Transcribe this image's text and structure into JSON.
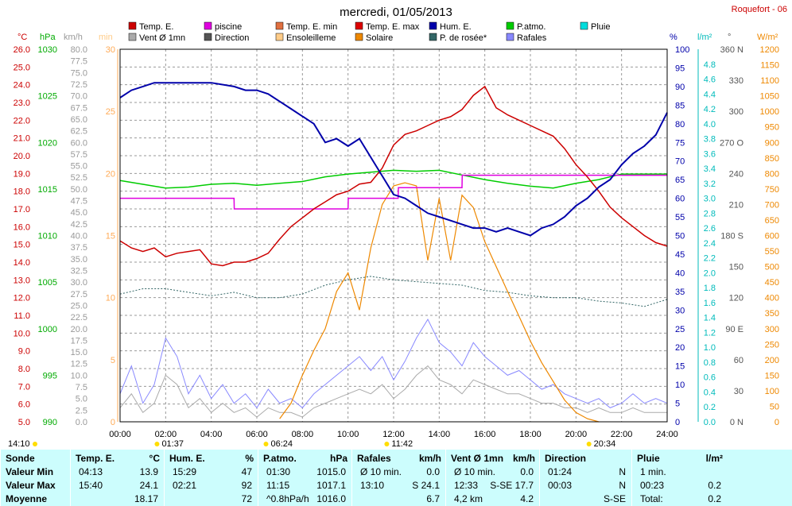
{
  "header": {
    "title": "mercredi, 01/05/2013",
    "station": "Roquefort - 06"
  },
  "legend": [
    {
      "label": "Temp. E.",
      "color": "#cc0000"
    },
    {
      "label": "piscine",
      "color": "#e000e0"
    },
    {
      "label": "Temp. E. min",
      "color": "#e07040"
    },
    {
      "label": "Temp. E. max",
      "color": "#dd0000"
    },
    {
      "label": "Hum. E.",
      "color": "#0000aa"
    },
    {
      "label": "P.atmo.",
      "color": "#00cc00"
    },
    {
      "label": "Pluie",
      "color": "#00dddd"
    },
    {
      "label": "Vent Ø 1mn",
      "color": "#aaaaaa"
    },
    {
      "label": "Direction",
      "color": "#555555"
    },
    {
      "label": "Ensoleilleme",
      "color": "#ffcc88"
    },
    {
      "label": "Solaire",
      "color": "#ee8800"
    },
    {
      "label": "P. de rosée*",
      "color": "#336666"
    },
    {
      "label": "Rafales",
      "color": "#8888ff"
    }
  ],
  "axes": {
    "units": {
      "temp": "°C",
      "press": "hPa",
      "wind": "km/h",
      "sun": "min",
      "hum": "%",
      "rain": "l/m²",
      "dir": "°",
      "solar": "W/m²"
    },
    "temp_ticks": [
      "26.0",
      "25.0",
      "24.0",
      "23.0",
      "22.0",
      "21.0",
      "20.0",
      "19.0",
      "18.0",
      "17.0",
      "16.0",
      "15.0",
      "14.0",
      "13.0",
      "12.0",
      "11.0",
      "10.0",
      "9.0",
      "8.0",
      "7.0",
      "6.0",
      "5.0"
    ],
    "press_ticks": [
      "1030",
      "1025",
      "1020",
      "1015",
      "1010",
      "1005",
      "1000",
      "995",
      "990"
    ],
    "wind_ticks": [
      "80.0",
      "77.5",
      "75.0",
      "72.5",
      "70.0",
      "67.5",
      "65.0",
      "62.5",
      "60.0",
      "57.5",
      "55.0",
      "52.5",
      "50.0",
      "47.5",
      "45.0",
      "42.5",
      "40.0",
      "37.5",
      "35.0",
      "32.5",
      "30.0",
      "27.5",
      "25.0",
      "22.5",
      "20.0",
      "17.5",
      "15.0",
      "12.5",
      "10.0",
      "7.5",
      "5.0",
      "2.5",
      "0.0"
    ],
    "sun_ticks": [
      "30",
      "25",
      "20",
      "15",
      "10",
      "5",
      "0"
    ],
    "hum_ticks": [
      "100",
      "95",
      "90",
      "85",
      "80",
      "75",
      "70",
      "65",
      "60",
      "55",
      "50",
      "45",
      "40",
      "35",
      "30",
      "25",
      "20",
      "15",
      "10",
      "5",
      "0"
    ],
    "rain_ticks": [
      "4.8",
      "4.6",
      "4.4",
      "4.2",
      "4.0",
      "3.8",
      "3.6",
      "3.4",
      "3.2",
      "3.0",
      "2.8",
      "2.6",
      "2.4",
      "2.2",
      "2.0",
      "1.8",
      "1.6",
      "1.4",
      "1.2",
      "1.0",
      "0.8",
      "0.6",
      "0.4",
      "0.2",
      "0.0"
    ],
    "dir_ticks": [
      {
        "v": 360,
        "label": "360 N"
      },
      {
        "v": 330,
        "label": "330"
      },
      {
        "v": 300,
        "label": "300"
      },
      {
        "v": 270,
        "label": "270 O"
      },
      {
        "v": 240,
        "label": "240"
      },
      {
        "v": 210,
        "label": "210"
      },
      {
        "v": 180,
        "label": "180 S"
      },
      {
        "v": 150,
        "label": "150"
      },
      {
        "v": 120,
        "label": "120"
      },
      {
        "v": 90,
        "label": "90 E"
      },
      {
        "v": 60,
        "label": "60"
      },
      {
        "v": 30,
        "label": "30"
      },
      {
        "v": 0,
        "label": "0 N"
      }
    ],
    "solar_ticks": [
      "1200",
      "1150",
      "1100",
      "1050",
      "1000",
      "950",
      "900",
      "850",
      "800",
      "750",
      "700",
      "650",
      "600",
      "550",
      "500",
      "450",
      "400",
      "350",
      "300",
      "250",
      "200",
      "150",
      "100",
      "50",
      "0"
    ],
    "x_ticks": [
      "00:00",
      "02:00",
      "04:00",
      "06:00",
      "08:00",
      "10:00",
      "12:00",
      "14:00",
      "16:00",
      "18:00",
      "20:00",
      "22:00",
      "24:00"
    ]
  },
  "markers": [
    {
      "time": "14:10",
      "hour": 0
    },
    {
      "time": "01:37",
      "hour": 1.62
    },
    {
      "time": "06:24",
      "hour": 6.4
    },
    {
      "time": "11:42",
      "hour": 11.7
    },
    {
      "time": "20:34",
      "hour": 20.57
    }
  ],
  "chart_data": {
    "type": "line",
    "x_unit": "hour",
    "xlim": [
      0,
      24
    ],
    "ylim_temp": [
      5,
      26
    ],
    "ylim_press": [
      990,
      1030
    ],
    "ylim_hum": [
      0,
      100
    ],
    "ylim_solar": [
      0,
      1200
    ],
    "ylim_wind": [
      0,
      80
    ],
    "series": [
      {
        "name": "Temp. E.",
        "axis": "temp",
        "color": "#cc0000",
        "x": [
          0,
          0.5,
          1,
          1.5,
          2,
          2.5,
          3,
          3.5,
          4,
          4.5,
          5,
          5.5,
          6,
          6.5,
          7,
          7.5,
          8,
          8.5,
          9,
          9.5,
          10,
          10.5,
          11,
          11.5,
          12,
          12.5,
          13,
          13.5,
          14,
          14.5,
          15,
          15.5,
          16,
          16.5,
          17,
          17.5,
          18,
          18.5,
          19,
          19.5,
          20,
          20.5,
          21,
          21.5,
          22,
          22.5,
          23,
          23.5,
          24
        ],
        "y": [
          15.2,
          14.8,
          14.6,
          14.8,
          14.3,
          14.5,
          14.6,
          14.7,
          13.9,
          13.8,
          14.0,
          14.0,
          14.2,
          14.5,
          15.3,
          16.0,
          16.5,
          17.0,
          17.4,
          17.8,
          18.0,
          18.4,
          18.5,
          19.3,
          20.6,
          21.2,
          21.4,
          21.7,
          22.0,
          22.2,
          22.6,
          23.4,
          23.9,
          22.7,
          22.3,
          22.0,
          21.7,
          21.4,
          21.1,
          20.4,
          19.5,
          18.8,
          18.0,
          17.1,
          16.5,
          16.0,
          15.5,
          15.1,
          14.9
        ]
      },
      {
        "name": "piscine",
        "axis": "temp",
        "color": "#e000e0",
        "x": [
          0,
          5,
          5.01,
          10,
          10.01,
          12.2,
          12.21,
          15,
          15.01,
          19,
          19.01,
          24
        ],
        "y": [
          17.6,
          17.6,
          17.0,
          17.0,
          17.6,
          17.6,
          18.2,
          18.2,
          18.9,
          18.9,
          18.9,
          18.9
        ]
      },
      {
        "name": "Hum. E.",
        "axis": "hum",
        "color": "#0000aa",
        "x": [
          0,
          0.5,
          1,
          1.5,
          2,
          3,
          4,
          5,
          5.5,
          6,
          6.5,
          7,
          7.5,
          8,
          8.5,
          9,
          9.5,
          10,
          10.5,
          11,
          11.5,
          12,
          12.5,
          13,
          13.5,
          14,
          14.5,
          15,
          15.5,
          16,
          16.5,
          17,
          17.5,
          18,
          18.5,
          19,
          19.5,
          20,
          20.5,
          21,
          21.5,
          22,
          22.5,
          23,
          23.5,
          24
        ],
        "y": [
          87,
          89,
          90,
          91,
          91,
          91,
          91,
          90,
          89,
          89,
          88,
          86,
          84,
          82,
          80,
          75,
          76,
          74,
          76,
          71,
          66,
          61,
          60,
          58,
          56,
          55,
          54,
          53,
          52,
          52,
          51,
          52,
          51,
          50,
          52,
          53,
          55,
          58,
          60,
          63,
          65,
          69,
          72,
          74,
          77,
          83
        ]
      },
      {
        "name": "P.atmo.",
        "axis": "press",
        "color": "#00cc00",
        "x": [
          0,
          1,
          2,
          3,
          4,
          5,
          6,
          7,
          8,
          9,
          10,
          11,
          12,
          13,
          14,
          15,
          16,
          17,
          18,
          19,
          20,
          21,
          22,
          23,
          24
        ],
        "y": [
          1015.9,
          1015.5,
          1015.1,
          1015.2,
          1015.5,
          1015.6,
          1015.4,
          1015.6,
          1015.8,
          1016.3,
          1016.6,
          1016.8,
          1017.0,
          1016.9,
          1017.0,
          1016.5,
          1016.0,
          1015.6,
          1015.3,
          1015.1,
          1015.6,
          1016.0,
          1016.6,
          1016.6,
          1016.6
        ]
      },
      {
        "name": "Solaire",
        "axis": "solar",
        "color": "#ee8800",
        "x": [
          7,
          7.5,
          8,
          8.5,
          9,
          9.5,
          10,
          10.5,
          11,
          11.5,
          12,
          12.5,
          13,
          13.5,
          14,
          14.5,
          15,
          15.5,
          16,
          16.5,
          17,
          17.5,
          18,
          18.5,
          19,
          19.5,
          20,
          20.5,
          21
        ],
        "y": [
          10,
          60,
          150,
          230,
          300,
          420,
          480,
          360,
          560,
          700,
          760,
          770,
          760,
          520,
          720,
          520,
          730,
          690,
          580,
          500,
          420,
          340,
          260,
          190,
          130,
          70,
          30,
          10,
          0
        ]
      },
      {
        "name": "P. de rosée*",
        "axis": "temp",
        "color": "#336666",
        "x": [
          0,
          1,
          2,
          3,
          4,
          5,
          6,
          7,
          8,
          9,
          10,
          11,
          12,
          13,
          14,
          15,
          16,
          17,
          18,
          19,
          20,
          21,
          22,
          23,
          24
        ],
        "y": [
          12.2,
          12.5,
          12.5,
          12.3,
          12.1,
          12.3,
          12.0,
          12.0,
          12.2,
          12.7,
          13.0,
          13.2,
          13.0,
          12.9,
          12.8,
          12.7,
          12.4,
          12.3,
          12.1,
          12.0,
          12.0,
          11.8,
          11.7,
          11.5,
          11.9
        ]
      },
      {
        "name": "Rafales",
        "axis": "wind",
        "color": "#8888ff",
        "x": [
          0,
          0.5,
          1,
          1.5,
          2,
          2.5,
          3,
          3.5,
          4,
          4.5,
          5,
          5.5,
          6,
          6.5,
          7,
          7.5,
          8,
          8.5,
          9,
          9.5,
          10,
          10.5,
          11,
          11.5,
          12,
          12.5,
          13,
          13.5,
          14,
          14.5,
          15,
          15.5,
          16,
          16.5,
          17,
          17.5,
          18,
          18.5,
          19,
          19.5,
          20,
          20.5,
          21,
          21.5,
          22,
          22.5,
          23,
          23.5,
          24
        ],
        "y": [
          6,
          12,
          4,
          8,
          18,
          14,
          6,
          10,
          5,
          8,
          4,
          6,
          3,
          7,
          4,
          5,
          3,
          6,
          8,
          10,
          12,
          14,
          11,
          14,
          9,
          13,
          18,
          22,
          17,
          15,
          12,
          17,
          14,
          12,
          10,
          11,
          9,
          7,
          8,
          6,
          5,
          4,
          5,
          3,
          4,
          6,
          4,
          5,
          4
        ]
      },
      {
        "name": "Vent Ø 1mn",
        "axis": "wind",
        "color": "#aaaaaa",
        "x": [
          0,
          0.5,
          1,
          1.5,
          2,
          2.5,
          3,
          3.5,
          4,
          4.5,
          5,
          5.5,
          6,
          6.5,
          7,
          7.5,
          8,
          8.5,
          9,
          9.5,
          10,
          10.5,
          11,
          11.5,
          12,
          12.5,
          13,
          13.5,
          14,
          14.5,
          15,
          15.5,
          16,
          16.5,
          17,
          17.5,
          18,
          18.5,
          19,
          19.5,
          20,
          20.5,
          21,
          21.5,
          22,
          22.5,
          23,
          23.5,
          24
        ],
        "y": [
          3,
          6,
          2,
          4,
          10,
          8,
          3,
          5,
          2,
          4,
          2,
          3,
          1,
          3,
          2,
          2,
          1,
          3,
          4,
          5,
          6,
          7,
          6,
          8,
          5,
          7,
          10,
          12,
          9,
          8,
          6,
          9,
          8,
          7,
          6,
          6,
          5,
          4,
          4,
          3,
          3,
          2,
          3,
          2,
          2,
          3,
          2,
          2,
          2
        ]
      }
    ]
  },
  "summary": {
    "headers": [
      "Sonde",
      "Temp. E.",
      "°C",
      "Hum. E.",
      "%",
      "P.atmo.",
      "hPa",
      "Rafales",
      "km/h",
      "Vent Ø 1mn",
      "km/h",
      "Direction",
      "Pluie",
      "l/m²"
    ],
    "row_labels": [
      "Valeur Min",
      "Valeur Max",
      "Moyenne"
    ],
    "temp": [
      [
        "04:13",
        "13.9"
      ],
      [
        "15:40",
        "24.1"
      ],
      [
        "",
        "18.17"
      ]
    ],
    "hum": [
      [
        "15:29",
        "47"
      ],
      [
        "02:21",
        "92"
      ],
      [
        "",
        "72"
      ]
    ],
    "press": [
      [
        "01:30",
        "1015.0"
      ],
      [
        "11:15",
        "1017.1"
      ],
      [
        "^0.8hPa/h",
        "1016.0"
      ]
    ],
    "gust": [
      [
        "Ø 10 min.",
        "0.0"
      ],
      [
        "13:10",
        "S 24.1"
      ],
      [
        "",
        "6.7"
      ]
    ],
    "wind": [
      [
        "Ø 10 min.",
        "0.0"
      ],
      [
        "12:33",
        "S-SE 17.7"
      ],
      [
        "4,2 km",
        "4.2"
      ]
    ],
    "dir": [
      [
        "01:24",
        "N"
      ],
      [
        "00:03",
        "N"
      ],
      [
        "",
        "S-SE"
      ]
    ],
    "rain": [
      [
        "1 min.",
        ""
      ],
      [
        "00:23",
        "0.2"
      ],
      [
        "Total:",
        "0.2"
      ]
    ]
  }
}
